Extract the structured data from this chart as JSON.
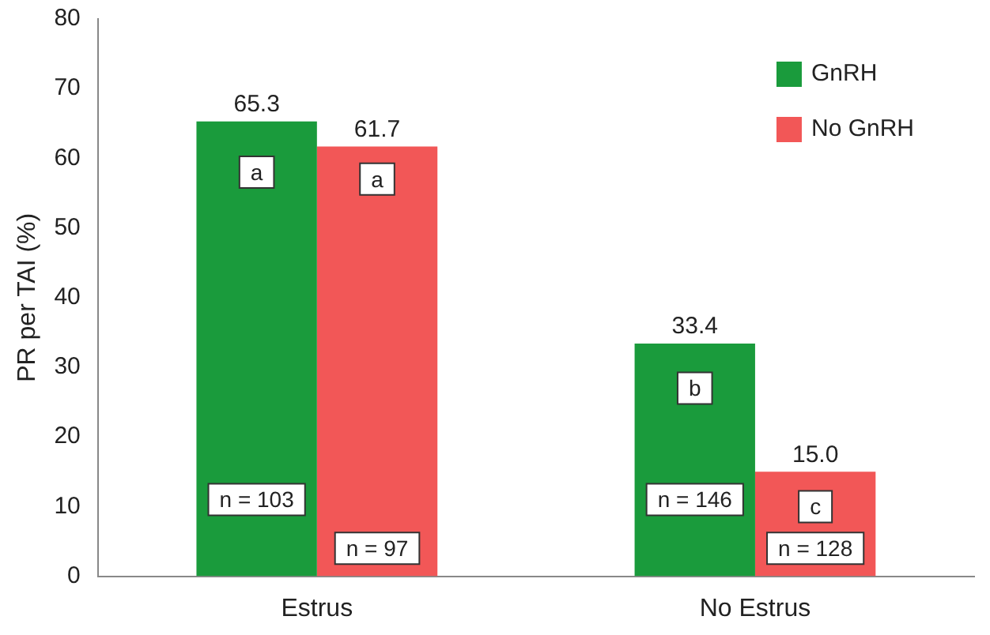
{
  "chart_data": {
    "type": "bar",
    "ylabel": "PR per TAI (%)",
    "categories": [
      "Estrus",
      "No Estrus"
    ],
    "series": [
      {
        "name": "GnRH",
        "color": "#1a9b3c",
        "values": [
          65.3,
          33.4
        ]
      },
      {
        "name": "No GnRH",
        "color": "#f25757",
        "values": [
          61.7,
          15.0
        ]
      }
    ],
    "value_labels": [
      [
        "65.3",
        "33.4"
      ],
      [
        "61.7",
        "15.0"
      ]
    ],
    "ylim": [
      0,
      80
    ],
    "yticks": [
      0,
      10,
      20,
      30,
      40,
      50,
      60,
      70,
      80
    ],
    "grid": false,
    "legend": "top right",
    "annotations": [
      {
        "text": "a",
        "x": "Estrus",
        "y": 58
      },
      {
        "text": "a",
        "x": "Estrus",
        "y": 57
      },
      {
        "text": "n = 103",
        "x": "Estrus",
        "y": 11
      },
      {
        "text": "n = 97",
        "x": "Estrus",
        "y": 4
      },
      {
        "text": "b",
        "x": "No Estrus",
        "y": 27
      },
      {
        "text": "c",
        "x": "No Estrus",
        "y": 10
      },
      {
        "text": "n = 146",
        "x": "No Estrus",
        "y": 11
      },
      {
        "text": "n = 128",
        "x": "No Estrus",
        "y": 4
      }
    ]
  }
}
